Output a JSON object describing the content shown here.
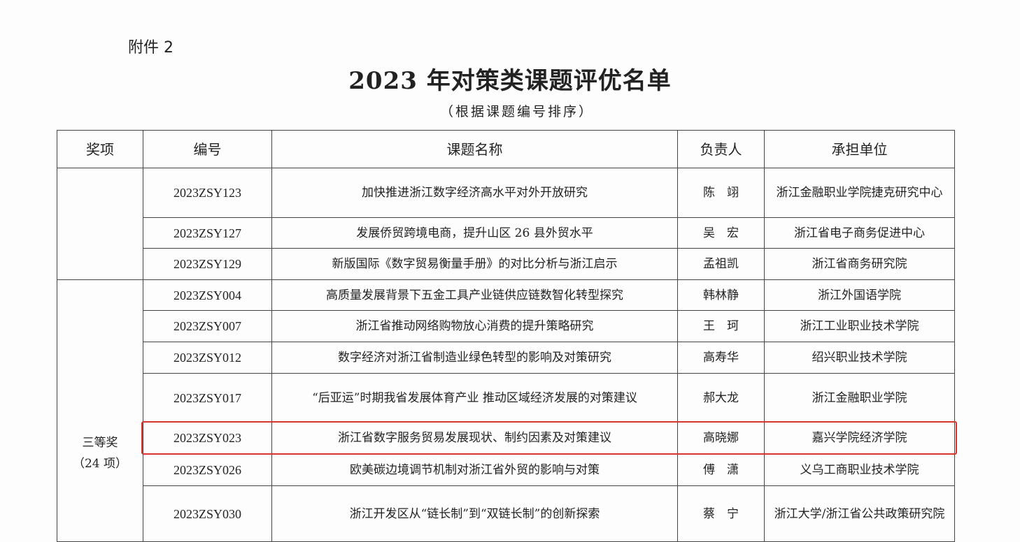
{
  "attachment_label": "附件 2",
  "title": "2023 年对策类课题评优名单",
  "subtitle": "（根据课题编号排序）",
  "table": {
    "headers": [
      "奖项",
      "编号",
      "课题名称",
      "负责人",
      "承担单位"
    ],
    "groups": [
      {
        "award": "",
        "rows": [
          {
            "code": "2023ZSY123",
            "name": "加快推进浙江数字经济高水平对外开放研究",
            "leader": "陈　翊",
            "unit": "浙江金融职业学院捷克研究中心"
          },
          {
            "code": "2023ZSY127",
            "name": "发展侨贸跨境电商，提升山区 26 县外贸水平",
            "leader": "吴　宏",
            "unit": "浙江省电子商务促进中心"
          },
          {
            "code": "2023ZSY129",
            "name": "新版国际《数字贸易衡量手册》的对比分析与浙江启示",
            "leader": "孟祖凯",
            "unit": "浙江省商务研究院"
          }
        ]
      },
      {
        "award": "三等奖",
        "award_count": "（24 项）",
        "rows": [
          {
            "code": "2023ZSY004",
            "name": "高质量发展背景下五金工具产业链供应链数智化转型探究",
            "leader": "韩林静",
            "unit": "浙江外国语学院"
          },
          {
            "code": "2023ZSY007",
            "name": "浙江省推动网络购物放心消费的提升策略研究",
            "leader": "王　珂",
            "unit": "浙江工业职业技术学院"
          },
          {
            "code": "2023ZSY012",
            "name": "数字经济对浙江省制造业绿色转型的影响及对策研究",
            "leader": "高寿华",
            "unit": "绍兴职业技术学院"
          },
          {
            "code": "2023ZSY017",
            "name": "“后亚运”时期我省发展体育产业 推动区域经济发展的对策建议",
            "leader": "郝大龙",
            "unit": "浙江金融职业学院"
          },
          {
            "code": "2023ZSY023",
            "name": "浙江省数字服务贸易发展现状、制约因素及对策建议",
            "leader": "高晓娜",
            "unit": "嘉兴学院经济学院"
          },
          {
            "code": "2023ZSY026",
            "name": "欧美碳边境调节机制对浙江省外贸的影响与对策",
            "leader": "傅　潇",
            "unit": "义乌工商职业技术学院"
          },
          {
            "code": "2023ZSY030",
            "name": "浙江开发区从“链长制”到“双链长制”的创新探索",
            "leader": "蔡　宁",
            "unit": "浙江大学/浙江省公共政策研究院"
          }
        ]
      }
    ]
  },
  "highlight_color": "#d9352f",
  "highlighted_row_code": "2023ZSY023"
}
